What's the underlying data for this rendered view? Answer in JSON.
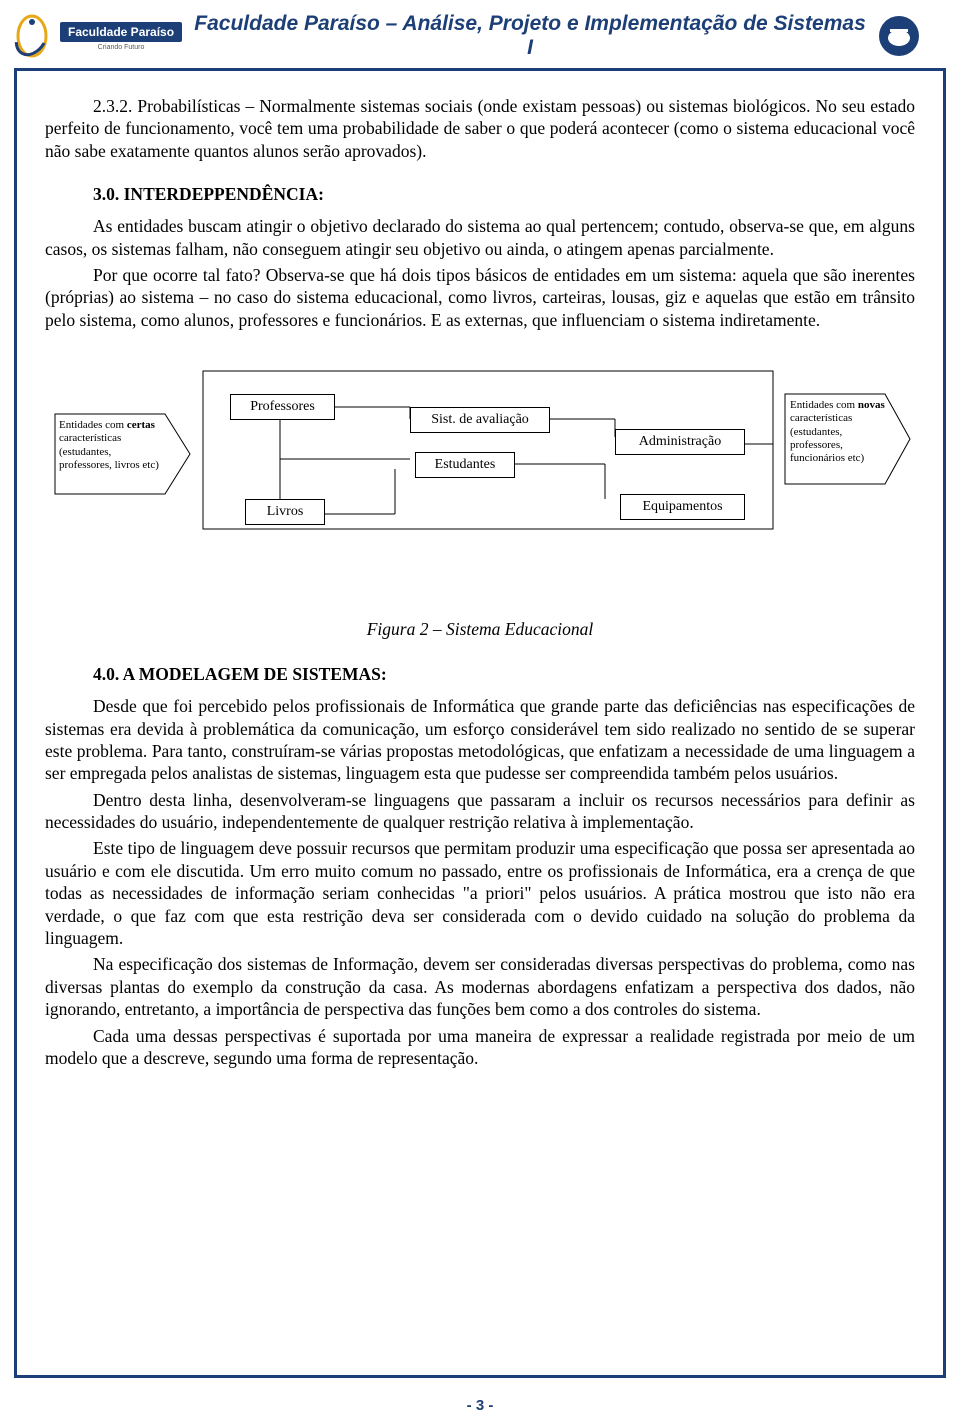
{
  "header": {
    "logo_badge": "Faculdade Paraíso",
    "logo_sub": "Criando Futuro",
    "title": "Faculdade Paraíso  –  Análise, Projeto e Implementação de Sistemas I"
  },
  "section_232": {
    "p1": "2.3.2. Probabilísticas – Normalmente sistemas sociais (onde existam pessoas) ou sistemas biológicos. No seu estado perfeito de funcionamento, você tem uma probabilidade de saber o que poderá acontecer (como o sistema educacional você não sabe exatamente quantos alunos serão aprovados)."
  },
  "section_30": {
    "heading": "3.0. INTERDEPPENDÊNCIA:",
    "p1": "As entidades buscam atingir o objetivo declarado do sistema ao qual pertencem; contudo, observa-se que, em alguns casos, os sistemas falham, não conseguem atingir seu objetivo ou ainda, o atingem apenas parcialmente.",
    "p2": "Por que ocorre tal fato? Observa-se que há dois tipos básicos de entidades em um sistema: aquela que são inerentes (próprias) ao sistema – no caso do sistema educacional, como livros, carteiras, lousas, giz e aquelas que estão em trânsito pelo sistema, como alunos, professores e funcionários. E as externas, que influenciam o sistema indiretamente."
  },
  "diagram": {
    "left_label_b": "certas",
    "left_label": "Entidades com\ncaracterísticas (estudantes, professores, livros etc)",
    "right_label_b": "novas",
    "right_label": "Entidades com\ncaracterísticas (estudantes, professores, funcionários etc)",
    "professores": "Professores",
    "livros": "Livros",
    "sist_avaliacao": "Sist. de avaliação",
    "estudantes": "Estudantes",
    "administracao": "Administração",
    "equipamentos": "Equipamentos",
    "caption": "Figura 2 – Sistema Educacional"
  },
  "section_40": {
    "heading": "4.0. A MODELAGEM DE SISTEMAS:",
    "p1": "Desde que foi percebido pelos profissionais de Informática que grande parte das deficiências nas especificações de sistemas era devida à problemática da comunicação, um esforço considerável tem sido realizado no sentido de se superar este problema. Para tanto, construíram-se várias propostas metodológicas, que enfatizam a necessidade de uma linguagem a ser empregada pelos analistas de sistemas, linguagem esta que pudesse ser compreendida também pelos usuários.",
    "p2": "Dentro desta linha, desenvolveram-se linguagens que passaram a incluir os recursos necessários para definir as necessidades do usuário, independentemente de qualquer restrição relativa à implementação.",
    "p3": "Este tipo de linguagem deve possuir recursos que permitam produzir uma especificação que possa ser apresentada ao usuário e com ele discutida. Um erro muito comum no passado, entre os profissionais de Informática, era a crença de que todas as necessidades de informação seriam conhecidas \"a priori\" pelos usuários. A prática mostrou que isto não era verdade, o que faz com que esta restrição deva ser considerada com o devido cuidado na solução do problema da linguagem.",
    "p4": "Na especificação dos sistemas de Informação, devem ser consideradas diversas perspectivas do problema, como nas diversas plantas do exemplo da construção da casa. As modernas abordagens enfatizam a perspectiva dos dados, não ignorando, entretanto, a importância de perspectiva das funções bem como a dos controles do sistema.",
    "p5": "Cada uma dessas perspectivas é suportada por uma maneira de expressar a realidade registrada por meio de um modelo que a descreve, segundo uma forma de representação."
  },
  "footer": {
    "page_num": "- 3 -"
  },
  "colors": {
    "brand_blue": "#1d3f77",
    "text": "#000000",
    "bg": "#ffffff"
  }
}
